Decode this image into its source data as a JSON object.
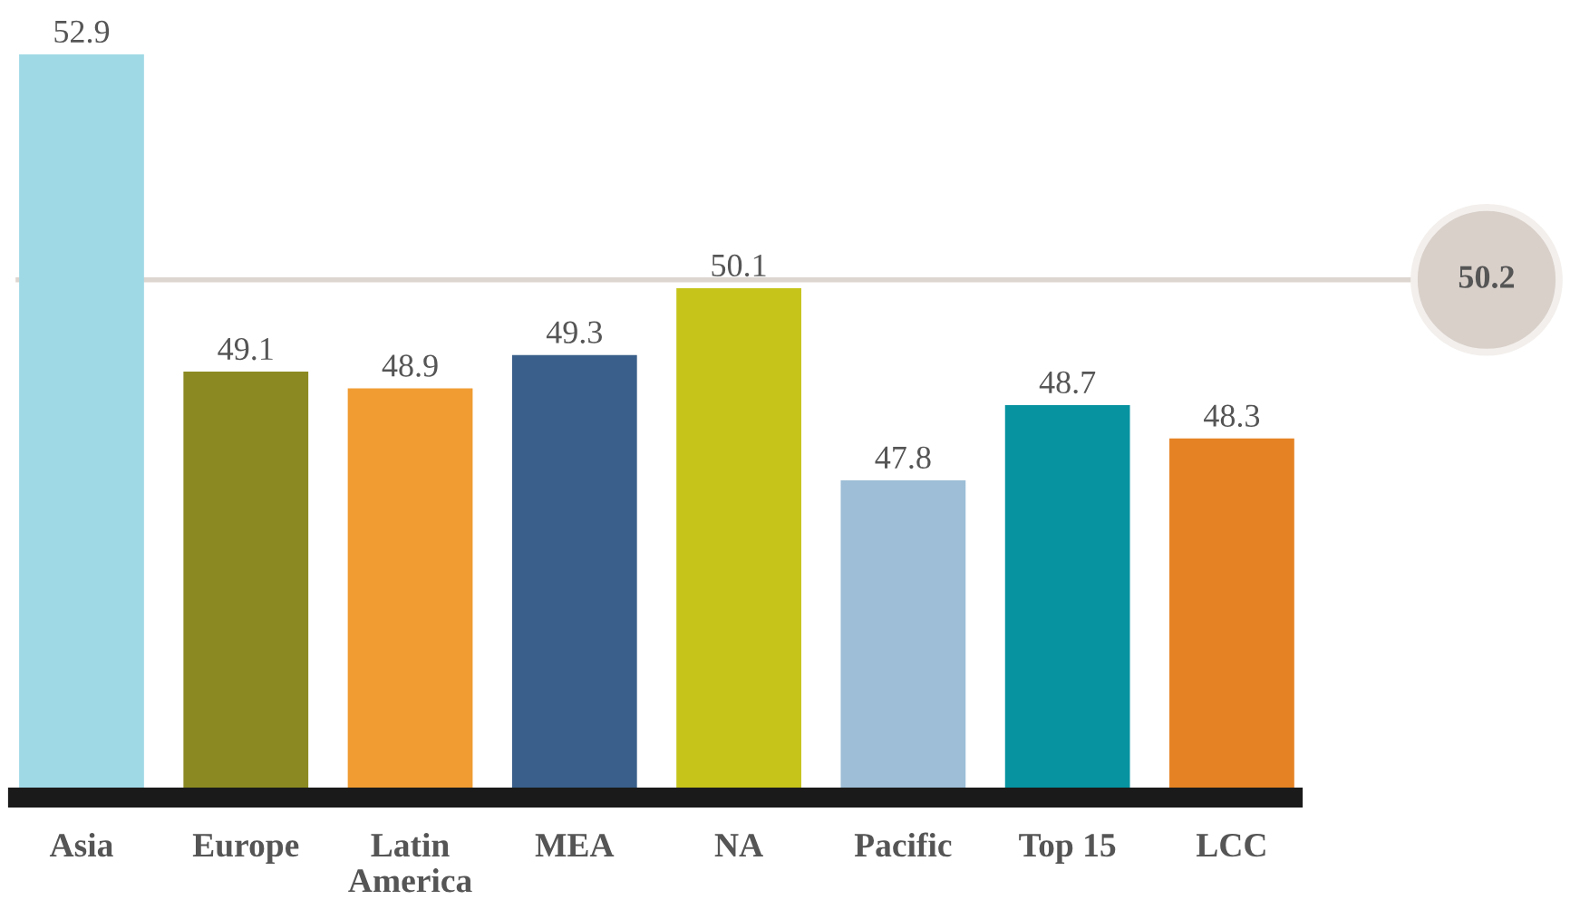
{
  "chart_data": {
    "type": "bar",
    "categories": [
      "Asia",
      "Europe",
      "Latin\nAmerica",
      "MEA",
      "NA",
      "Pacific",
      "Top 15",
      "LCC"
    ],
    "values": [
      52.9,
      49.1,
      48.9,
      49.3,
      50.1,
      47.8,
      48.7,
      48.3
    ],
    "colors": [
      "#a0d9e6",
      "#8b8a22",
      "#f09c33",
      "#3a5f8a",
      "#c6c41b",
      "#9dbed6",
      "#0793a0",
      "#e58324"
    ],
    "ylim": [
      44,
      52.9
    ],
    "data_labels": true,
    "tick_labels": "x",
    "grid": false,
    "legend": false,
    "ref_lines": [
      {
        "axis": "y",
        "value": 50.2,
        "label": "50.2",
        "color": "#ddd5d0"
      }
    ]
  }
}
